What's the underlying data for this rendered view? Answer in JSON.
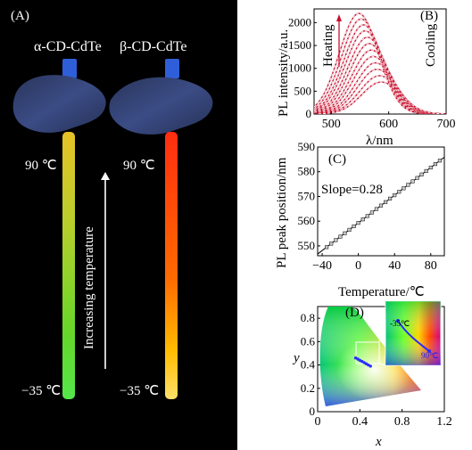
{
  "panelA": {
    "label": "(A)",
    "sample_left": "α-CD-CdTe",
    "sample_right": "β-CD-CdTe",
    "temp_top_left": "90 ℃",
    "temp_top_right": "90 ℃",
    "temp_bottom_left": "−35 ℃",
    "temp_bottom_right": "−35 ℃",
    "arrow_label": "Increasing temperature",
    "colors": {
      "background": "#000000",
      "glove": "#2b3a66",
      "cap": "#2f5fd8"
    }
  },
  "panelB": {
    "label": "(B)",
    "heating_label": "Heating",
    "cooling_label": "Cooling",
    "ylabel": "PL intensity/a.u.",
    "xlabel": "λ/nm",
    "xticks": [
      "500",
      "600",
      "700"
    ],
    "yticks": [
      "0",
      "500",
      "1000",
      "1500",
      "2000"
    ],
    "xlim": [
      470,
      700
    ],
    "ylim": [
      0,
      2300
    ],
    "heating_color": "#c8102e",
    "cooling_color": "#ffffff"
  },
  "panelC": {
    "label": "(C)",
    "slope_label": "Slope=0.28",
    "ylabel": "PL peak position/nm",
    "xlabel": "Temperature/℃",
    "xticks": [
      "−40",
      "0",
      "40",
      "80"
    ],
    "yticks": [
      "550",
      "560",
      "570",
      "580",
      "590"
    ],
    "xlim": [
      -45,
      95
    ],
    "ylim": [
      546,
      590
    ]
  },
  "panelD": {
    "label": "(D)",
    "xlabel": "x",
    "ylabel": "y",
    "xticks": [
      "0",
      "0.4",
      "0.8",
      "1.2"
    ],
    "yticks": [
      "0",
      "0.2",
      "0.4",
      "0.6",
      "0.8"
    ],
    "inset_low": "-35℃",
    "inset_high": "90℃"
  },
  "chart_data": [
    {
      "type": "line",
      "panel": "B",
      "xlabel": "λ/nm",
      "ylabel": "PL intensity/a.u.",
      "xlim": [
        470,
        700
      ],
      "ylim": [
        0,
        2300
      ],
      "series_note": "family of emission spectra from -35 to 90 ℃",
      "peak_positions": [
        548,
        552,
        556,
        559,
        563,
        566,
        570,
        573,
        577,
        580,
        584,
        587
      ],
      "peak_intensities": [
        2200,
        2080,
        1950,
        1820,
        1680,
        1540,
        1400,
        1260,
        1120,
        980,
        840,
        700
      ],
      "fwhm": 80
    },
    {
      "type": "scatter",
      "panel": "C",
      "xlabel": "Temperature/℃",
      "ylabel": "PL peak position/nm",
      "xlim": [
        -45,
        95
      ],
      "ylim": [
        546,
        590
      ],
      "x": [
        -35,
        -30,
        -25,
        -20,
        -15,
        -10,
        -5,
        0,
        5,
        10,
        15,
        20,
        25,
        30,
        35,
        40,
        45,
        50,
        55,
        60,
        65,
        70,
        75,
        80,
        85,
        90
      ],
      "y": [
        549.5,
        550.9,
        552.3,
        553.7,
        555.1,
        556.5,
        557.9,
        559.3,
        560.7,
        562.1,
        563.5,
        564.9,
        566.3,
        567.7,
        569.1,
        570.5,
        571.9,
        573.3,
        574.7,
        576.1,
        577.5,
        578.9,
        580.3,
        581.7,
        583.1,
        584.5
      ],
      "fit_slope": 0.28
    },
    {
      "type": "scatter",
      "panel": "D",
      "xlabel": "x",
      "ylabel": "y",
      "xlim": [
        0,
        1.2
      ],
      "ylim": [
        0,
        0.9
      ],
      "x": [
        0.36,
        0.38,
        0.4,
        0.42,
        0.44,
        0.46,
        0.48,
        0.5
      ],
      "y": [
        0.46,
        0.45,
        0.44,
        0.43,
        0.42,
        0.41,
        0.4,
        0.39
      ]
    }
  ]
}
